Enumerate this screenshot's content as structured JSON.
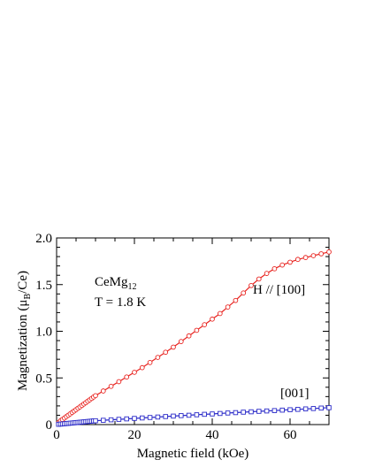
{
  "chart_data": {
    "type": "scatter",
    "xlabel": "Magnetic field (kOe)",
    "ylabel_main": "Magnetization (μ",
    "ylabel_sub": "B",
    "ylabel_tail": "/Ce)",
    "xlim": [
      0,
      70
    ],
    "ylim": [
      0,
      2.0
    ],
    "x_ticks": [
      0,
      20,
      40,
      60
    ],
    "x_tick_labels": [
      "0",
      "20",
      "40",
      "60"
    ],
    "y_ticks": [
      0,
      0.5,
      1.0,
      1.5,
      2.0
    ],
    "y_tick_labels": [
      "0",
      "0.5",
      "1.0",
      "1.5",
      "2.0"
    ],
    "grid": false,
    "annotations": {
      "compound_main": "CeMg",
      "compound_sub": "12",
      "temperature": "T = 1.8 K",
      "label_100": "H // [100]",
      "label_001": "[001]"
    },
    "series": [
      {
        "color": "#e8231f",
        "marker": "circle",
        "x": [
          0.5,
          1,
          1.5,
          2,
          2.5,
          3,
          3.5,
          4,
          4.5,
          5,
          5.5,
          6,
          6.5,
          7,
          7.5,
          8,
          8.5,
          9,
          9.5,
          10,
          12,
          14,
          16,
          18,
          20,
          22,
          24,
          26,
          28,
          30,
          32,
          34,
          36,
          38,
          40,
          42,
          44,
          46,
          48,
          50,
          52,
          54,
          56,
          58,
          60,
          62,
          64,
          66,
          68,
          70
        ],
        "y": [
          0.02,
          0.04,
          0.055,
          0.07,
          0.085,
          0.1,
          0.115,
          0.13,
          0.145,
          0.16,
          0.175,
          0.19,
          0.205,
          0.22,
          0.235,
          0.25,
          0.265,
          0.28,
          0.295,
          0.31,
          0.36,
          0.41,
          0.46,
          0.51,
          0.56,
          0.61,
          0.665,
          0.72,
          0.775,
          0.83,
          0.89,
          0.95,
          1.01,
          1.07,
          1.13,
          1.19,
          1.26,
          1.33,
          1.41,
          1.49,
          1.56,
          1.62,
          1.67,
          1.71,
          1.74,
          1.77,
          1.79,
          1.81,
          1.83,
          1.85
        ]
      },
      {
        "color": "#2a2ac8",
        "marker": "square",
        "x": [
          0.5,
          1,
          1.5,
          2,
          2.5,
          3,
          3.5,
          4,
          4.5,
          5,
          5.5,
          6,
          6.5,
          7,
          7.5,
          8,
          8.5,
          9,
          9.5,
          10,
          12,
          14,
          16,
          18,
          20,
          22,
          24,
          26,
          28,
          30,
          32,
          34,
          36,
          38,
          40,
          42,
          44,
          46,
          48,
          50,
          52,
          54,
          56,
          58,
          60,
          62,
          64,
          66,
          68,
          70
        ],
        "y": [
          0.003,
          0.005,
          0.007,
          0.009,
          0.011,
          0.013,
          0.015,
          0.017,
          0.019,
          0.021,
          0.023,
          0.025,
          0.027,
          0.029,
          0.031,
          0.033,
          0.035,
          0.037,
          0.039,
          0.041,
          0.046,
          0.051,
          0.056,
          0.061,
          0.066,
          0.071,
          0.076,
          0.081,
          0.086,
          0.091,
          0.096,
          0.1,
          0.105,
          0.11,
          0.114,
          0.119,
          0.124,
          0.128,
          0.133,
          0.137,
          0.142,
          0.146,
          0.15,
          0.155,
          0.159,
          0.163,
          0.168,
          0.172,
          0.177,
          0.181
        ]
      }
    ]
  }
}
